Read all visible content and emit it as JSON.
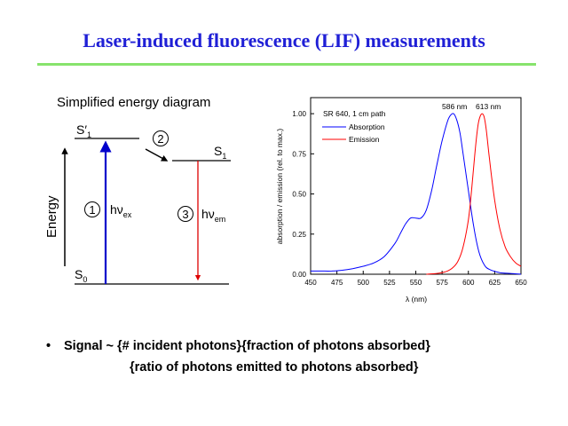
{
  "slide": {
    "title": "Laser-induced fluorescence (LIF) measurements",
    "accent_color": "#1f1fd6",
    "rule_color": "#87e36c"
  },
  "energy_diagram": {
    "title": "Simplified energy diagram",
    "axis_label": "Energy",
    "level_s1_prime": "S′",
    "level_s1_prime_sub": "1",
    "level_s1": "S",
    "level_s1_sub": "1",
    "level_s0": "S",
    "level_s0_sub": "0",
    "step1_num": "1",
    "step2_num": "2",
    "step3_num": "3",
    "step1_label": "hν",
    "step1_sub": "ex",
    "step3_label": "hν",
    "step3_sub": "em",
    "excitation_color": "#0000cc",
    "emission_color": "#dd0000"
  },
  "chart_data": {
    "type": "line",
    "annotation": "SR 640, 1 cm path",
    "xlabel": "λ (nm)",
    "ylabel": "absorption / emission (rel. to max.)",
    "xlim": [
      450,
      650
    ],
    "ylim": [
      0,
      1.1
    ],
    "x_ticks": [
      "450",
      "475",
      "500",
      "525",
      "550",
      "575",
      "600",
      "625",
      "650"
    ],
    "y_ticks": [
      "0.00",
      "0.25",
      "0.50",
      "0.75",
      "1.00"
    ],
    "peak_labels": [
      "586 nm",
      "613 nm"
    ],
    "series": [
      {
        "name": "Absorption",
        "color": "#0000ff",
        "x": [
          450,
          460,
          470,
          480,
          490,
          500,
          510,
          520,
          530,
          535,
          540,
          545,
          550,
          555,
          560,
          565,
          570,
          575,
          580,
          583,
          586,
          589,
          592,
          595,
          600,
          605,
          610,
          615,
          620,
          630,
          640,
          650
        ],
        "y": [
          0.02,
          0.02,
          0.02,
          0.025,
          0.035,
          0.05,
          0.07,
          0.11,
          0.19,
          0.25,
          0.31,
          0.35,
          0.35,
          0.35,
          0.4,
          0.52,
          0.68,
          0.83,
          0.95,
          0.99,
          1.0,
          0.96,
          0.88,
          0.75,
          0.52,
          0.3,
          0.14,
          0.06,
          0.03,
          0.01,
          0.005,
          0.0
        ]
      },
      {
        "name": "Emission",
        "color": "#ff0000",
        "x": [
          560,
          570,
          575,
          580,
          585,
          590,
          595,
          600,
          603,
          606,
          609,
          611,
          613,
          615,
          617,
          620,
          625,
          630,
          635,
          640,
          645,
          650
        ],
        "y": [
          0.0,
          0.005,
          0.01,
          0.02,
          0.04,
          0.08,
          0.17,
          0.34,
          0.52,
          0.74,
          0.92,
          0.98,
          1.0,
          0.98,
          0.9,
          0.72,
          0.46,
          0.28,
          0.17,
          0.11,
          0.07,
          0.05
        ]
      }
    ]
  },
  "bullet": {
    "symbol": "•",
    "line1": "Signal ~ {# incident photons}{fraction of photons absorbed}",
    "line2": "{ratio of photons emitted to photons absorbed}"
  }
}
